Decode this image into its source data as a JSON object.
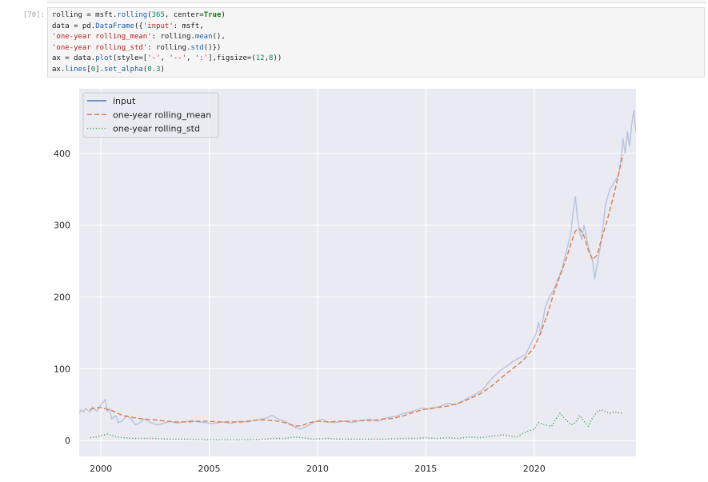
{
  "cell": {
    "prompt": "[70]:",
    "code_lines": [
      [
        {
          "t": "rolling = msft.",
          "c": "plain"
        },
        {
          "t": "rolling",
          "c": "fn"
        },
        {
          "t": "(",
          "c": "plain"
        },
        {
          "t": "365",
          "c": "num"
        },
        {
          "t": ", center=",
          "c": "plain"
        },
        {
          "t": "True",
          "c": "kw"
        },
        {
          "t": ")",
          "c": "plain"
        }
      ],
      [
        {
          "t": "data = pd.",
          "c": "plain"
        },
        {
          "t": "DataFrame",
          "c": "fn"
        },
        {
          "t": "({",
          "c": "plain"
        },
        {
          "t": "'input'",
          "c": "str"
        },
        {
          "t": ": msft,",
          "c": "plain"
        }
      ],
      [
        {
          "t": "'one-year rolling_mean'",
          "c": "str"
        },
        {
          "t": ": rolling.",
          "c": "plain"
        },
        {
          "t": "mean",
          "c": "fn"
        },
        {
          "t": "(),",
          "c": "plain"
        }
      ],
      [
        {
          "t": "'one-year rolling_std'",
          "c": "str"
        },
        {
          "t": ": rolling.",
          "c": "plain"
        },
        {
          "t": "std",
          "c": "fn"
        },
        {
          "t": "()})",
          "c": "plain"
        }
      ],
      [
        {
          "t": "ax = data.",
          "c": "plain"
        },
        {
          "t": "plot",
          "c": "fn"
        },
        {
          "t": "(style=[",
          "c": "plain"
        },
        {
          "t": "'-'",
          "c": "str"
        },
        {
          "t": ", ",
          "c": "plain"
        },
        {
          "t": "'--'",
          "c": "str"
        },
        {
          "t": ", ",
          "c": "plain"
        },
        {
          "t": "':'",
          "c": "str"
        },
        {
          "t": "],figsize=(",
          "c": "plain"
        },
        {
          "t": "12",
          "c": "num"
        },
        {
          "t": ",",
          "c": "plain"
        },
        {
          "t": "8",
          "c": "num"
        },
        {
          "t": "))",
          "c": "plain"
        }
      ],
      [
        {
          "t": "ax.",
          "c": "plain"
        },
        {
          "t": "lines",
          "c": "fn"
        },
        {
          "t": "[",
          "c": "plain"
        },
        {
          "t": "0",
          "c": "num"
        },
        {
          "t": "].",
          "c": "plain"
        },
        {
          "t": "set_alpha",
          "c": "fn"
        },
        {
          "t": "(",
          "c": "plain"
        },
        {
          "t": "0.3",
          "c": "num"
        },
        {
          "t": ")",
          "c": "plain"
        }
      ]
    ]
  },
  "colors": {
    "plot_bg": "#eaeaf2",
    "grid": "#ffffff",
    "input": "#4c72b0",
    "mean": "#dd8452",
    "std": "#55a868",
    "legend_bg": "#eaeaf2",
    "legend_border": "#cccccc",
    "tick_text": "#262626"
  },
  "chart_data": {
    "type": "line",
    "xlim": [
      1999.0,
      2024.7
    ],
    "ylim": [
      -22,
      490
    ],
    "xticks": [
      2000,
      2005,
      2010,
      2015,
      2020
    ],
    "yticks": [
      0,
      100,
      200,
      300,
      400
    ],
    "xtick_labels": [
      "2000",
      "2005",
      "2010",
      "2015",
      "2020"
    ],
    "ytick_labels": [
      "0",
      "100",
      "200",
      "300",
      "400"
    ],
    "grid": true,
    "legend_placement": "top-left",
    "series": [
      {
        "name": "input",
        "style": "solid",
        "alpha": 0.3,
        "x": [
          1999.0,
          1999.1,
          1999.2,
          1999.3,
          1999.4,
          1999.5,
          1999.6,
          1999.7,
          1999.8,
          1999.9,
          2000.0,
          2000.2,
          2000.3,
          2000.4,
          2000.5,
          2000.7,
          2000.8,
          2001.0,
          2001.2,
          2001.4,
          2001.6,
          2001.8,
          2002.0,
          2002.3,
          2002.6,
          2002.9,
          2003.2,
          2003.5,
          2003.8,
          2004.2,
          2004.5,
          2004.8,
          2005.2,
          2005.6,
          2006.0,
          2006.4,
          2006.8,
          2007.2,
          2007.6,
          2007.9,
          2008.2,
          2008.5,
          2008.8,
          2009.0,
          2009.2,
          2009.5,
          2009.8,
          2010.2,
          2010.5,
          2010.8,
          2011.2,
          2011.6,
          2012.0,
          2012.4,
          2012.8,
          2013.2,
          2013.6,
          2014.0,
          2014.4,
          2014.8,
          2015.2,
          2015.6,
          2016.0,
          2016.4,
          2016.8,
          2017.2,
          2017.6,
          2018.0,
          2018.4,
          2018.8,
          2019.0,
          2019.3,
          2019.6,
          2019.9,
          2020.1,
          2020.2,
          2020.3,
          2020.5,
          2020.7,
          2020.9,
          2021.1,
          2021.3,
          2021.5,
          2021.7,
          2021.8,
          2021.9,
          2022.0,
          2022.1,
          2022.2,
          2022.3,
          2022.5,
          2022.7,
          2022.8,
          2022.9,
          2023.0,
          2023.1,
          2023.3,
          2023.5,
          2023.7,
          2023.9,
          2024.0,
          2024.1,
          2024.2,
          2024.3,
          2024.4,
          2024.5,
          2024.6,
          2024.7
        ],
        "y": [
          38,
          43,
          40,
          45,
          42,
          40,
          47,
          44,
          41,
          45,
          50,
          57,
          40,
          45,
          30,
          35,
          25,
          28,
          35,
          30,
          22,
          25,
          30,
          25,
          22,
          24,
          27,
          24,
          26,
          28,
          26,
          25,
          24,
          26,
          24,
          27,
          26,
          29,
          31,
          35,
          30,
          27,
          22,
          18,
          16,
          20,
          25,
          30,
          26,
          25,
          27,
          25,
          28,
          30,
          27,
          32,
          34,
          38,
          41,
          45,
          44,
          47,
          52,
          50,
          57,
          63,
          70,
          85,
          97,
          105,
          110,
          115,
          120,
          138,
          150,
          165,
          148,
          185,
          200,
          210,
          225,
          240,
          265,
          290,
          320,
          340,
          310,
          290,
          280,
          300,
          270,
          250,
          225,
          245,
          260,
          280,
          330,
          350,
          360,
          370,
          390,
          420,
          400,
          430,
          410,
          440,
          460,
          430
        ]
      },
      {
        "name": "one-year rolling_mean",
        "style": "dashed",
        "alpha": 1.0,
        "x": [
          1999.5,
          1999.8,
          2000.0,
          2000.5,
          2001.0,
          2001.5,
          2002.0,
          2002.5,
          2003.0,
          2003.5,
          2004.0,
          2004.5,
          2005.0,
          2005.5,
          2006.0,
          2006.5,
          2007.0,
          2007.5,
          2008.0,
          2008.5,
          2008.8,
          2009.0,
          2009.3,
          2009.6,
          2010.0,
          2010.5,
          2011.0,
          2011.5,
          2012.0,
          2012.5,
          2013.0,
          2013.5,
          2014.0,
          2014.5,
          2015.0,
          2015.5,
          2016.0,
          2016.5,
          2017.0,
          2017.5,
          2018.0,
          2018.5,
          2019.0,
          2019.5,
          2020.0,
          2020.3,
          2020.6,
          2020.9,
          2021.2,
          2021.5,
          2021.7,
          2021.9,
          2022.1,
          2022.3,
          2022.5,
          2022.7,
          2022.9,
          2023.1,
          2023.4,
          2023.7,
          2024.0,
          2024.1
        ],
        "y": [
          43,
          46,
          46,
          42,
          35,
          32,
          30,
          29,
          27,
          26,
          26,
          27,
          27,
          26,
          26,
          26,
          28,
          29,
          28,
          25,
          22,
          20,
          21,
          25,
          27,
          26,
          27,
          27,
          28,
          28,
          30,
          31,
          35,
          40,
          44,
          46,
          48,
          52,
          58,
          65,
          75,
          88,
          100,
          112,
          130,
          150,
          175,
          205,
          230,
          255,
          275,
          292,
          295,
          285,
          265,
          252,
          258,
          280,
          310,
          345,
          385,
          398
        ]
      },
      {
        "name": "one-year rolling_std",
        "style": "dotted",
        "alpha": 1.0,
        "x": [
          1999.5,
          1999.8,
          2000.0,
          2000.3,
          2000.6,
          2001.0,
          2001.5,
          2002.0,
          2002.5,
          2003.0,
          2004.0,
          2005.0,
          2006.0,
          2007.0,
          2007.5,
          2008.0,
          2008.5,
          2008.9,
          2009.3,
          2009.8,
          2010.5,
          2011.0,
          2012.0,
          2013.0,
          2014.0,
          2014.5,
          2015.0,
          2015.5,
          2016.0,
          2016.5,
          2017.0,
          2017.5,
          2018.0,
          2018.5,
          2018.8,
          2019.2,
          2019.6,
          2020.0,
          2020.2,
          2020.5,
          2020.8,
          2021.0,
          2021.2,
          2021.5,
          2021.7,
          2021.9,
          2022.1,
          2022.3,
          2022.5,
          2022.7,
          2022.9,
          2023.1,
          2023.3,
          2023.5,
          2023.7,
          2023.9,
          2024.1
        ],
        "y": [
          4,
          5,
          7,
          9,
          6,
          4,
          3,
          3,
          3,
          2,
          2,
          1,
          1,
          1,
          2,
          3,
          3,
          5,
          4,
          2,
          3,
          2,
          2,
          2,
          3,
          3,
          4,
          3,
          4,
          3,
          5,
          4,
          6,
          8,
          7,
          5,
          12,
          16,
          25,
          22,
          20,
          30,
          38,
          28,
          22,
          25,
          35,
          27,
          20,
          32,
          40,
          43,
          40,
          38,
          40,
          39,
          38
        ]
      }
    ]
  }
}
